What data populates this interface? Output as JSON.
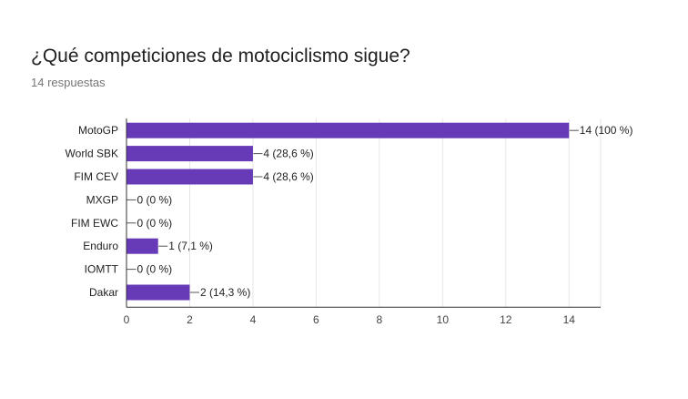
{
  "header": {
    "title": "¿Qué competiciones de motociclismo sigue?",
    "subtitle": "14 respuestas"
  },
  "chart_data": {
    "type": "bar",
    "orientation": "horizontal",
    "categories": [
      "MotoGP",
      "World SBK",
      "FIM CEV",
      "MXGP",
      "FIM EWC",
      "Enduro",
      "IOMTT",
      "Dakar"
    ],
    "values": [
      14,
      4,
      4,
      0,
      0,
      1,
      0,
      2
    ],
    "data_labels": [
      "14 (100 %)",
      "4 (28,6 %)",
      "4 (28,6 %)",
      "0 (0 %)",
      "0 (0 %)",
      "1 (7,1 %)",
      "0 (0 %)",
      "2 (14,3 %)"
    ],
    "xlim": [
      0,
      15
    ],
    "xticks": [
      0,
      2,
      4,
      6,
      8,
      10,
      12,
      14
    ],
    "grid": true,
    "bar_color": "#673ab7",
    "title": "",
    "xlabel": "",
    "ylabel": ""
  }
}
